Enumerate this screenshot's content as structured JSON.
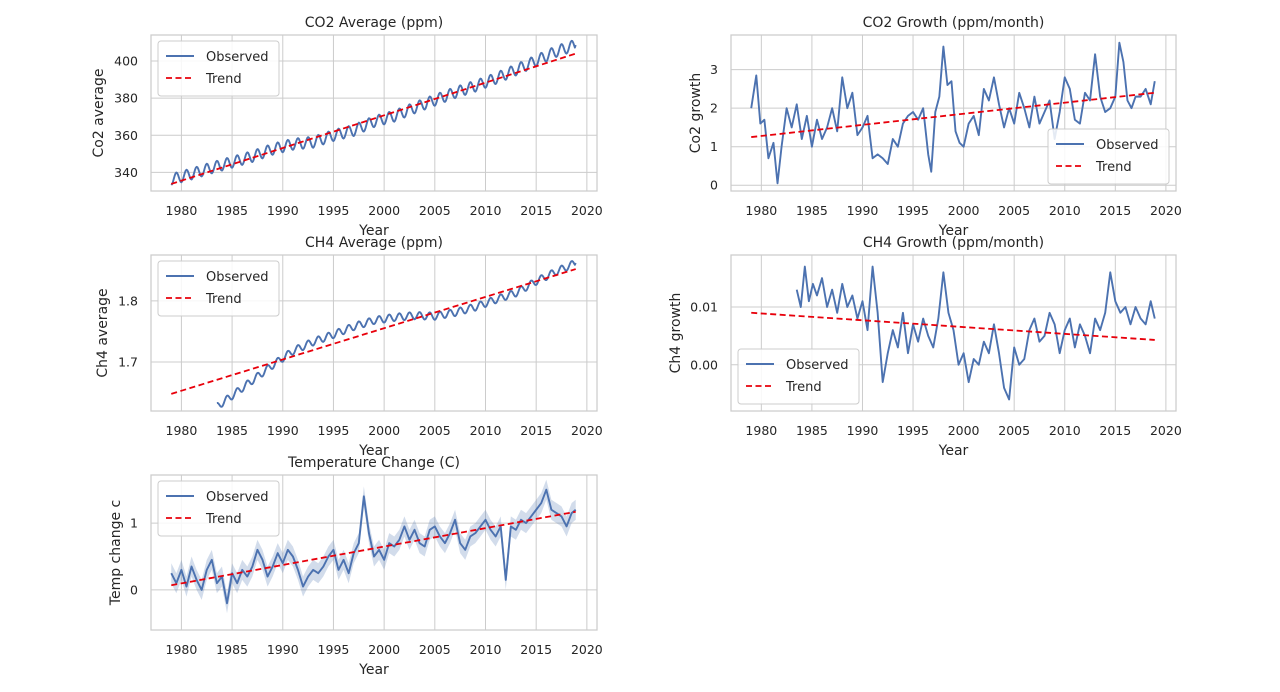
{
  "figure": {
    "background": "#ffffff"
  },
  "colors": {
    "axes_bg": "#ffffff",
    "grid": "#cccccc",
    "spine": "#cccccc",
    "observed": "#4c72b0",
    "trend": "#e8000b",
    "band": "#4c72b0",
    "legend_edge": "#cccccc",
    "text": "#262626"
  },
  "legend": {
    "observed": "Observed",
    "trend": "Trend"
  },
  "chart_data": [
    {
      "id": "co2-average",
      "type": "line",
      "title": "CO2 Average (ppm)",
      "xlabel": "Year",
      "ylabel": "Co2 average",
      "xlim": [
        1977,
        2021
      ],
      "ylim": [
        330,
        414
      ],
      "xticks": [
        1980,
        1985,
        1990,
        1995,
        2000,
        2005,
        2010,
        2015,
        2020
      ],
      "yticks": [
        340,
        360,
        380,
        400
      ],
      "ytick_labels": [
        "340",
        "360",
        "380",
        "400"
      ],
      "legend_position": "upper left",
      "grid": true,
      "seasonal_amplitude": 3,
      "series": [
        {
          "name": "Observed",
          "x": [
            1979,
            1981,
            1983,
            1985,
            1987,
            1989,
            1991,
            1993,
            1995,
            1997,
            1999,
            2001,
            2003,
            2005,
            2007,
            2009,
            2011,
            2013,
            2015,
            2017,
            2018.9
          ],
          "y": [
            336.2,
            339.2,
            342.5,
            345.5,
            348.6,
            352.5,
            355.2,
            356.3,
            359.9,
            362.6,
            367.4,
            370.3,
            374.8,
            378.9,
            383.0,
            386.5,
            390.6,
            395.2,
            400.1,
            405.2,
            408.6
          ]
        },
        {
          "name": "Trend",
          "x": [
            1979,
            2018.9
          ],
          "y": [
            333.8,
            404.0
          ]
        }
      ]
    },
    {
      "id": "co2-growth",
      "type": "line",
      "title": "CO2 Growth (ppm/month)",
      "xlabel": "Year",
      "ylabel": "Co2 growth",
      "xlim": [
        1977,
        2021
      ],
      "ylim": [
        -0.15,
        3.9
      ],
      "xticks": [
        1980,
        1985,
        1990,
        1995,
        2000,
        2005,
        2010,
        2015,
        2020
      ],
      "yticks": [
        0,
        1,
        2,
        3
      ],
      "ytick_labels": [
        "0",
        "1",
        "2",
        "3"
      ],
      "legend_position": "lower right",
      "grid": true,
      "series": [
        {
          "name": "Observed",
          "x": [
            1979,
            1979.5,
            1979.9,
            1980.3,
            1980.7,
            1981.2,
            1981.6,
            1982.0,
            1982.5,
            1983.0,
            1983.5,
            1984.0,
            1984.5,
            1985.0,
            1985.5,
            1986.0,
            1986.5,
            1987.0,
            1987.5,
            1988.0,
            1988.5,
            1989.0,
            1989.5,
            1990.0,
            1990.5,
            1991.0,
            1991.5,
            1992.0,
            1992.5,
            1993.0,
            1993.5,
            1994.0,
            1994.5,
            1995.0,
            1995.5,
            1996.0,
            1996.5,
            1996.8,
            1997.2,
            1997.6,
            1998.0,
            1998.4,
            1998.8,
            1999.2,
            1999.6,
            2000.0,
            2000.5,
            2001.0,
            2001.5,
            2002.0,
            2002.5,
            2003.0,
            2003.5,
            2004.0,
            2004.5,
            2005.0,
            2005.5,
            2006.0,
            2006.5,
            2007.0,
            2007.5,
            2008.0,
            2008.5,
            2009.0,
            2009.5,
            2010.0,
            2010.5,
            2011.0,
            2011.5,
            2012.0,
            2012.5,
            2013.0,
            2013.5,
            2014.0,
            2014.5,
            2015.0,
            2015.4,
            2015.8,
            2016.2,
            2016.6,
            2017.0,
            2017.5,
            2018.0,
            2018.5,
            2018.9
          ],
          "y": [
            2.0,
            2.85,
            1.6,
            1.7,
            0.7,
            1.1,
            0.05,
            1.0,
            2.0,
            1.5,
            2.1,
            1.2,
            1.8,
            1.0,
            1.7,
            1.2,
            1.5,
            2.0,
            1.4,
            2.8,
            2.0,
            2.4,
            1.3,
            1.5,
            1.8,
            0.7,
            0.8,
            0.7,
            0.55,
            1.2,
            1.0,
            1.6,
            1.8,
            1.9,
            1.7,
            2.0,
            0.8,
            0.35,
            1.9,
            2.3,
            3.6,
            2.6,
            2.7,
            1.4,
            1.1,
            1.0,
            1.6,
            1.8,
            1.3,
            2.5,
            2.2,
            2.8,
            2.1,
            1.5,
            2.0,
            1.6,
            2.4,
            2.0,
            1.5,
            2.3,
            1.6,
            1.9,
            2.2,
            1.2,
            1.9,
            2.8,
            2.5,
            1.7,
            1.6,
            2.4,
            2.2,
            3.4,
            2.3,
            1.9,
            2.0,
            2.3,
            3.7,
            3.2,
            2.2,
            2.0,
            2.3,
            2.3,
            2.5,
            2.1,
            2.7
          ]
        },
        {
          "name": "Trend",
          "x": [
            1979,
            2018.9
          ],
          "y": [
            1.25,
            2.4
          ]
        }
      ]
    },
    {
      "id": "ch4-average",
      "type": "line",
      "title": "CH4 Average (ppm)",
      "xlabel": "Year",
      "ylabel": "Ch4 average",
      "xlim": [
        1977,
        2021
      ],
      "ylim": [
        1.62,
        1.875
      ],
      "xticks": [
        1980,
        1985,
        1990,
        1995,
        2000,
        2005,
        2010,
        2015,
        2020
      ],
      "yticks": [
        1.7,
        1.8
      ],
      "ytick_labels": [
        "1.7",
        "1.8"
      ],
      "legend_position": "upper left",
      "grid": true,
      "seasonal_amplitude": 0.006,
      "series": [
        {
          "name": "Observed",
          "x": [
            1983.5,
            1985,
            1987,
            1989,
            1991,
            1993,
            1995,
            1997,
            1999,
            2001,
            2003,
            2005,
            2007,
            2009,
            2011,
            2013,
            2015,
            2017,
            2018.9
          ],
          "y": [
            1.627,
            1.645,
            1.67,
            1.695,
            1.718,
            1.733,
            1.745,
            1.758,
            1.768,
            1.773,
            1.776,
            1.775,
            1.781,
            1.79,
            1.802,
            1.813,
            1.832,
            1.848,
            1.862
          ]
        },
        {
          "name": "Trend",
          "x": [
            1979,
            2018.9
          ],
          "y": [
            1.648,
            1.852
          ]
        }
      ]
    },
    {
      "id": "ch4-growth",
      "type": "line",
      "title": "CH4 Growth (ppm/month)",
      "xlabel": "Year",
      "ylabel": "Ch4 growth",
      "xlim": [
        1977,
        2021
      ],
      "ylim": [
        -0.008,
        0.019
      ],
      "xticks": [
        1980,
        1985,
        1990,
        1995,
        2000,
        2005,
        2010,
        2015,
        2020
      ],
      "yticks": [
        0.0,
        0.01
      ],
      "ytick_labels": [
        "0.00",
        "0.01"
      ],
      "legend_position": "lower left",
      "grid": true,
      "series": [
        {
          "name": "Observed",
          "x": [
            1983.5,
            1983.9,
            1984.3,
            1984.7,
            1985.1,
            1985.5,
            1986.0,
            1986.5,
            1987.0,
            1987.5,
            1988.0,
            1988.5,
            1989.0,
            1989.5,
            1990.0,
            1990.5,
            1991.0,
            1991.5,
            1992.0,
            1992.5,
            1993.0,
            1993.5,
            1994.0,
            1994.5,
            1995.0,
            1995.5,
            1996.0,
            1996.5,
            1997.0,
            1997.5,
            1998.0,
            1998.5,
            1999.0,
            1999.5,
            2000.0,
            2000.5,
            2001.0,
            2001.5,
            2002.0,
            2002.5,
            2003.0,
            2003.5,
            2004.0,
            2004.5,
            2005.0,
            2005.5,
            2006.0,
            2006.5,
            2007.0,
            2007.5,
            2008.0,
            2008.5,
            2009.0,
            2009.5,
            2010.0,
            2010.5,
            2011.0,
            2011.5,
            2012.0,
            2012.5,
            2013.0,
            2013.5,
            2014.0,
            2014.5,
            2015.0,
            2015.5,
            2016.0,
            2016.5,
            2017.0,
            2017.5,
            2018.0,
            2018.5,
            2018.9
          ],
          "y": [
            0.013,
            0.01,
            0.017,
            0.011,
            0.014,
            0.012,
            0.015,
            0.01,
            0.013,
            0.009,
            0.014,
            0.01,
            0.012,
            0.008,
            0.011,
            0.006,
            0.017,
            0.009,
            -0.003,
            0.002,
            0.006,
            0.003,
            0.009,
            0.002,
            0.007,
            0.004,
            0.008,
            0.005,
            0.003,
            0.008,
            0.016,
            0.009,
            0.006,
            0.0,
            0.002,
            -0.003,
            0.001,
            0.0,
            0.004,
            0.002,
            0.007,
            0.002,
            -0.004,
            -0.006,
            0.003,
            0.0,
            0.001,
            0.006,
            0.008,
            0.004,
            0.005,
            0.009,
            0.007,
            0.002,
            0.006,
            0.008,
            0.003,
            0.007,
            0.005,
            0.002,
            0.008,
            0.006,
            0.009,
            0.016,
            0.011,
            0.009,
            0.01,
            0.007,
            0.01,
            0.008,
            0.007,
            0.011,
            0.008
          ]
        },
        {
          "name": "Trend",
          "x": [
            1979,
            2018.9
          ],
          "y": [
            0.009,
            0.0043
          ]
        }
      ]
    },
    {
      "id": "temperature-change",
      "type": "line",
      "title": "Temperature Change (C)",
      "xlabel": "Year",
      "ylabel": "Temp change c",
      "xlim": [
        1977,
        2021
      ],
      "ylim": [
        -0.6,
        1.72
      ],
      "xticks": [
        1980,
        1985,
        1990,
        1995,
        2000,
        2005,
        2010,
        2015,
        2020
      ],
      "yticks": [
        0,
        1
      ],
      "ytick_labels": [
        "0",
        "1"
      ],
      "legend_position": "upper left",
      "grid": true,
      "confidence_band": 0.15,
      "series": [
        {
          "name": "Observed",
          "x": [
            1979,
            1979.5,
            1980,
            1980.5,
            1981,
            1981.5,
            1982,
            1982.5,
            1983,
            1983.5,
            1984,
            1984.5,
            1985,
            1985.5,
            1986,
            1986.5,
            1987,
            1987.5,
            1988,
            1988.5,
            1989,
            1989.5,
            1990,
            1990.5,
            1991,
            1991.5,
            1992,
            1992.5,
            1993,
            1993.5,
            1994,
            1994.5,
            1995,
            1995.5,
            1996,
            1996.5,
            1997,
            1997.5,
            1998,
            1998.5,
            1999,
            1999.5,
            2000,
            2000.5,
            2001,
            2001.5,
            2002,
            2002.5,
            2003,
            2003.5,
            2004,
            2004.5,
            2005,
            2005.5,
            2006,
            2006.5,
            2007,
            2007.5,
            2008,
            2008.5,
            2009,
            2009.5,
            2010,
            2010.5,
            2011,
            2011.5,
            2012,
            2012.5,
            2013,
            2013.5,
            2014,
            2014.5,
            2015,
            2015.5,
            2016,
            2016.5,
            2017,
            2017.5,
            2018,
            2018.5,
            2018.9
          ],
          "y": [
            0.25,
            0.1,
            0.3,
            0.05,
            0.35,
            0.15,
            0.0,
            0.3,
            0.45,
            0.1,
            0.2,
            -0.2,
            0.25,
            0.1,
            0.3,
            0.2,
            0.35,
            0.6,
            0.45,
            0.2,
            0.35,
            0.55,
            0.4,
            0.6,
            0.5,
            0.3,
            0.05,
            0.2,
            0.3,
            0.25,
            0.35,
            0.5,
            0.6,
            0.3,
            0.45,
            0.25,
            0.55,
            0.7,
            1.4,
            0.85,
            0.5,
            0.6,
            0.45,
            0.7,
            0.65,
            0.75,
            0.95,
            0.75,
            0.9,
            0.7,
            0.65,
            0.9,
            0.95,
            0.8,
            0.7,
            0.85,
            1.05,
            0.7,
            0.6,
            0.8,
            0.85,
            0.95,
            1.05,
            0.9,
            0.8,
            0.95,
            0.15,
            0.95,
            0.9,
            1.05,
            1.0,
            1.1,
            1.2,
            1.3,
            1.5,
            1.2,
            1.15,
            1.1,
            0.95,
            1.15,
            1.2
          ]
        },
        {
          "name": "Trend",
          "x": [
            1979,
            2018.9
          ],
          "y": [
            0.07,
            1.17
          ]
        }
      ]
    }
  ]
}
